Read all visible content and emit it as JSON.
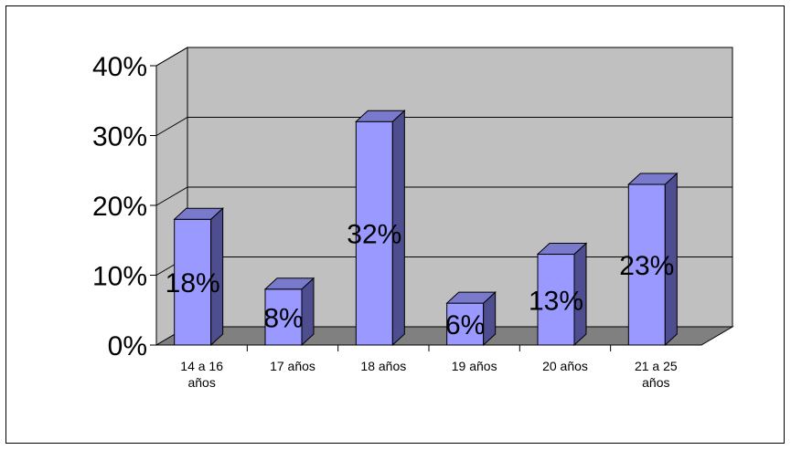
{
  "chart_data": {
    "type": "bar",
    "categories": [
      [
        "14 a 16",
        "años"
      ],
      [
        "17 años"
      ],
      [
        "18 años"
      ],
      [
        "19 años"
      ],
      [
        "20 años"
      ],
      [
        "21 a 25",
        "años"
      ]
    ],
    "values": [
      18,
      8,
      32,
      6,
      13,
      23
    ],
    "data_labels": [
      "18%",
      "8%",
      "32%",
      "6%",
      "13%",
      "23%"
    ],
    "y_ticks": [
      "0%",
      "10%",
      "20%",
      "30%",
      "40%"
    ],
    "ylim": [
      0,
      40
    ],
    "grid": true,
    "style": "3d-column",
    "colors": {
      "bar_front": "#9999ff",
      "bar_side": "#4d4d8f",
      "bar_top": "#7a7acc",
      "wall": "#c0c0c0",
      "floor": "#808080",
      "grid": "#000000"
    }
  }
}
